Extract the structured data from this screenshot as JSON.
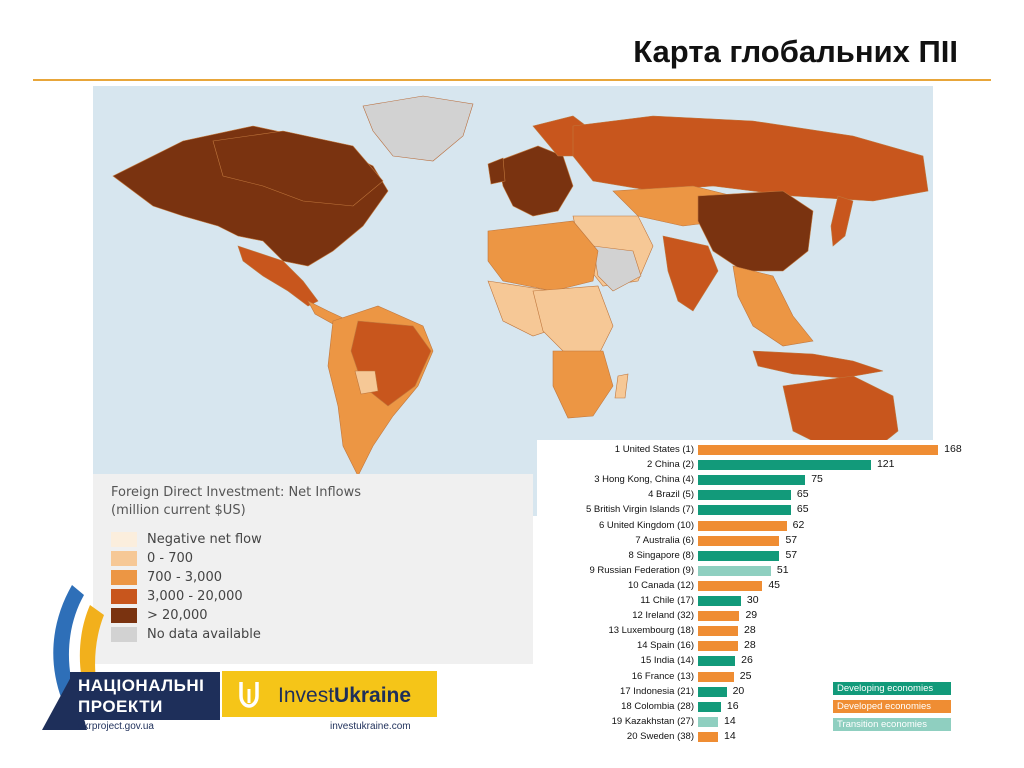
{
  "slide": {
    "title": "Карта глобальних ПІІ"
  },
  "map": {
    "legend_title_line1": "Foreign Direct Investment: Net Inflows",
    "legend_title_line2": "(million current $US)",
    "legend_items": [
      {
        "label": "Negative net flow",
        "color": "#fbeedd"
      },
      {
        "label": "0 - 700",
        "color": "#f6c896"
      },
      {
        "label": "700 - 3,000",
        "color": "#ec9644"
      },
      {
        "label": "3,000 - 20,000",
        "color": "#c8561d"
      },
      {
        "label": "> 20,000",
        "color": "#7a3310"
      },
      {
        "label": "No data available",
        "color": "#d2d2d2"
      }
    ],
    "ocean_color": "#d7e6ef"
  },
  "chart_data": {
    "type": "bar",
    "orientation": "horizontal",
    "categories": [
      "1 United States (1)",
      "2 China (2)",
      "3 Hong Kong, China (4)",
      "4 Brazil (5)",
      "5 British Virgin Islands (7)",
      "6 United Kingdom (10)",
      "7 Australia (6)",
      "8 Singapore (8)",
      "9 Russian Federation (9)",
      "10 Canada (12)",
      "11 Chile (17)",
      "12 Ireland (32)",
      "13 Luxembourg (18)",
      "14 Spain (16)",
      "15 India (14)",
      "16 France (13)",
      "17 Indonesia (21)",
      "18 Colombia (28)",
      "19 Kazakhstan (27)",
      "20 Sweden (38)"
    ],
    "values": [
      168,
      121,
      75,
      65,
      65,
      62,
      57,
      57,
      51,
      45,
      30,
      29,
      28,
      28,
      26,
      25,
      20,
      16,
      14,
      14
    ],
    "groups": [
      "developed",
      "developing",
      "developing",
      "developing",
      "developing",
      "developed",
      "developed",
      "developing",
      "transition",
      "developed",
      "developing",
      "developed",
      "developed",
      "developed",
      "developing",
      "developed",
      "developing",
      "developing",
      "transition",
      "developed"
    ],
    "legend": [
      {
        "key": "developing",
        "label": "Developing economies",
        "color": "#129a7a"
      },
      {
        "key": "developed",
        "label": "Developed economies",
        "color": "#ef8d33"
      },
      {
        "key": "transition",
        "label": "Transition economies",
        "color": "#8fcfc0"
      }
    ],
    "xlim": [
      0,
      170
    ]
  },
  "branding": {
    "np_line1": "НАЦІОНАЛЬНІ",
    "np_line2": "ПРОЕКТИ",
    "np_url": "ukrproject.gov.ua",
    "iu_text_a": "Invest",
    "iu_text_b": "Ukraine",
    "iu_url": "investukraine.com"
  }
}
